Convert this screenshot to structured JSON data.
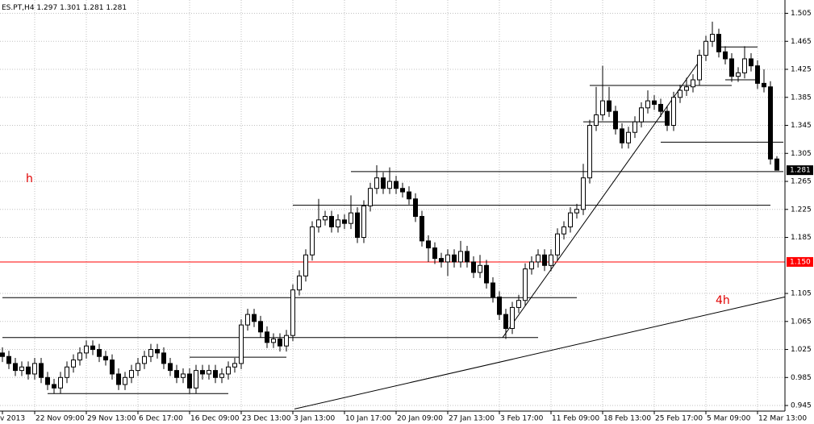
{
  "chart_data": {
    "type": "candlestick",
    "symbol": "ES.PT,H4",
    "header_ohlc": [
      1.297,
      1.301,
      1.281,
      1.281
    ],
    "categories": [
      "v 2013",
      null,
      null,
      null,
      null,
      "22 Nov 09:00",
      null,
      null,
      null,
      null,
      null,
      null,
      null,
      "29 Nov 13:00",
      null,
      null,
      null,
      null,
      null,
      null,
      null,
      "6 Dec 17:00",
      null,
      null,
      null,
      null,
      null,
      null,
      null,
      "16 Dec 09:00",
      null,
      null,
      null,
      null,
      null,
      null,
      null,
      "23 Dec 13:00",
      null,
      null,
      null,
      null,
      null,
      null,
      null,
      "3 Jan 13:00",
      null,
      null,
      null,
      null,
      null,
      null,
      null,
      "10 Jan 17:00",
      null,
      null,
      null,
      null,
      null,
      null,
      null,
      "20 Jan 09:00",
      null,
      null,
      null,
      null,
      null,
      null,
      null,
      "27 Jan 13:00",
      null,
      null,
      null,
      null,
      null,
      null,
      null,
      "3 Feb 17:00",
      null,
      null,
      null,
      null,
      null,
      null,
      null,
      "11 Feb 09:00",
      null,
      null,
      null,
      null,
      null,
      null,
      null,
      "18 Feb 13:00",
      null,
      null,
      null,
      null,
      null,
      null,
      null,
      "25 Feb 17:00",
      null,
      null,
      null,
      null,
      null,
      null,
      null,
      "5 Mar 09:00",
      null,
      null,
      null,
      null,
      null,
      null,
      null,
      "12 Mar 13:00",
      null,
      null,
      null
    ],
    "open": [
      1.02,
      1.015,
      1.005,
      0.995,
      1.0,
      0.99,
      1.005,
      0.985,
      0.975,
      0.97,
      0.985,
      1.0,
      1.01,
      1.02,
      1.03,
      1.025,
      1.015,
      1.01,
      0.99,
      0.975,
      0.985,
      0.995,
      1.005,
      1.015,
      1.025,
      1.02,
      1.005,
      0.995,
      0.985,
      0.99,
      0.97,
      0.995,
      0.99,
      0.995,
      0.985,
      0.99,
      1.0,
      1.005,
      1.06,
      1.075,
      1.065,
      1.05,
      1.035,
      1.04,
      1.03,
      1.045,
      1.11,
      1.13,
      1.16,
      1.2,
      1.21,
      1.215,
      1.2,
      1.21,
      1.205,
      1.22,
      1.185,
      1.23,
      1.255,
      1.27,
      1.255,
      1.265,
      1.255,
      1.25,
      1.24,
      1.215,
      1.18,
      1.17,
      1.155,
      1.15,
      1.16,
      1.15,
      1.165,
      1.15,
      1.135,
      1.145,
      1.12,
      1.1,
      1.075,
      1.055,
      1.085,
      1.095,
      1.14,
      1.15,
      1.16,
      1.145,
      1.16,
      1.19,
      1.2,
      1.22,
      1.225,
      1.27,
      1.345,
      1.36,
      1.38,
      1.365,
      1.34,
      1.32,
      1.335,
      1.35,
      1.37,
      1.38,
      1.375,
      1.365,
      1.345,
      1.385,
      1.395,
      1.4,
      1.41,
      1.445,
      1.465,
      1.475,
      1.45,
      1.44,
      1.415,
      1.42,
      1.44,
      1.43,
      1.405,
      1.4,
      1.297
    ],
    "high": [
      1.028,
      1.023,
      1.013,
      1.008,
      1.008,
      1.013,
      1.013,
      0.993,
      0.983,
      0.993,
      1.008,
      1.018,
      1.028,
      1.038,
      1.038,
      1.033,
      1.023,
      1.018,
      0.998,
      0.993,
      1.003,
      1.013,
      1.023,
      1.033,
      1.033,
      1.028,
      1.013,
      1.003,
      0.998,
      0.998,
      1.003,
      1.003,
      1.003,
      1.003,
      0.998,
      1.008,
      1.013,
      1.068,
      1.083,
      1.083,
      1.073,
      1.058,
      1.048,
      1.048,
      1.053,
      1.118,
      1.138,
      1.168,
      1.208,
      1.24,
      1.223,
      1.223,
      1.218,
      1.218,
      1.245,
      1.228,
      1.238,
      1.263,
      1.288,
      1.278,
      1.285,
      1.273,
      1.263,
      1.258,
      1.248,
      1.223,
      1.188,
      1.178,
      1.163,
      1.168,
      1.168,
      1.18,
      1.173,
      1.158,
      1.16,
      1.153,
      1.128,
      1.108,
      1.083,
      1.093,
      1.103,
      1.148,
      1.158,
      1.168,
      1.168,
      1.168,
      1.198,
      1.208,
      1.228,
      1.233,
      1.29,
      1.353,
      1.4,
      1.43,
      1.4,
      1.373,
      1.348,
      1.343,
      1.358,
      1.378,
      1.395,
      1.388,
      1.383,
      1.373,
      1.393,
      1.403,
      1.413,
      1.418,
      1.453,
      1.473,
      1.493,
      1.483,
      1.458,
      1.448,
      1.428,
      1.458,
      1.448,
      1.438,
      1.425,
      1.408,
      1.301
    ],
    "low": [
      1.007,
      0.997,
      0.987,
      0.987,
      0.982,
      0.982,
      0.977,
      0.967,
      0.962,
      0.962,
      0.977,
      0.992,
      1.002,
      1.012,
      1.017,
      1.007,
      1.002,
      0.982,
      0.967,
      0.967,
      0.977,
      0.987,
      0.997,
      1.007,
      1.012,
      0.997,
      0.987,
      0.977,
      0.977,
      0.962,
      0.962,
      0.982,
      0.982,
      0.977,
      0.977,
      0.982,
      0.992,
      0.997,
      1.052,
      1.057,
      1.042,
      1.027,
      1.027,
      1.022,
      1.022,
      1.037,
      1.102,
      1.122,
      1.152,
      1.192,
      1.202,
      1.192,
      1.192,
      1.197,
      1.197,
      1.177,
      1.177,
      1.222,
      1.247,
      1.247,
      1.247,
      1.247,
      1.242,
      1.232,
      1.207,
      1.172,
      1.15,
      1.147,
      1.142,
      1.13,
      1.142,
      1.142,
      1.142,
      1.127,
      1.127,
      1.112,
      1.092,
      1.067,
      1.04,
      1.047,
      1.077,
      1.087,
      1.132,
      1.142,
      1.137,
      1.137,
      1.152,
      1.182,
      1.192,
      1.212,
      1.217,
      1.262,
      1.337,
      1.352,
      1.357,
      1.332,
      1.312,
      1.312,
      1.327,
      1.342,
      1.362,
      1.367,
      1.357,
      1.337,
      1.337,
      1.377,
      1.387,
      1.392,
      1.402,
      1.437,
      1.457,
      1.442,
      1.432,
      1.407,
      1.407,
      1.412,
      1.422,
      1.397,
      1.392,
      1.289,
      1.281
    ],
    "close": [
      1.015,
      1.005,
      0.995,
      1.0,
      0.99,
      1.005,
      0.985,
      0.975,
      0.97,
      0.985,
      1.0,
      1.01,
      1.02,
      1.03,
      1.025,
      1.015,
      1.01,
      0.99,
      0.975,
      0.985,
      0.995,
      1.005,
      1.015,
      1.025,
      1.02,
      1.005,
      0.995,
      0.985,
      0.99,
      0.97,
      0.995,
      0.99,
      0.995,
      0.985,
      0.99,
      1.0,
      1.005,
      1.06,
      1.075,
      1.065,
      1.05,
      1.035,
      1.04,
      1.03,
      1.045,
      1.11,
      1.13,
      1.16,
      1.2,
      1.21,
      1.215,
      1.2,
      1.21,
      1.205,
      1.22,
      1.185,
      1.23,
      1.255,
      1.27,
      1.255,
      1.265,
      1.255,
      1.25,
      1.24,
      1.215,
      1.18,
      1.17,
      1.155,
      1.15,
      1.16,
      1.15,
      1.165,
      1.15,
      1.135,
      1.145,
      1.12,
      1.1,
      1.075,
      1.055,
      1.085,
      1.095,
      1.14,
      1.15,
      1.16,
      1.145,
      1.16,
      1.19,
      1.2,
      1.22,
      1.225,
      1.27,
      1.345,
      1.36,
      1.38,
      1.365,
      1.34,
      1.32,
      1.335,
      1.35,
      1.37,
      1.38,
      1.375,
      1.365,
      1.345,
      1.385,
      1.395,
      1.4,
      1.41,
      1.445,
      1.465,
      1.475,
      1.45,
      1.44,
      1.415,
      1.42,
      1.44,
      1.43,
      1.405,
      1.4,
      1.297,
      1.281
    ],
    "ylim": [
      0.937,
      1.524
    ],
    "yticks": [
      1.505,
      1.465,
      1.425,
      1.385,
      1.345,
      1.305,
      1.265,
      1.225,
      1.185,
      1.105,
      1.065,
      1.025,
      0.985,
      0.945
    ],
    "grid": true,
    "color": "#000000",
    "levels": [
      {
        "value": 0.962,
        "x": [
          7,
          35
        ]
      },
      {
        "value": 1.014,
        "x": [
          29,
          44
        ]
      },
      {
        "value": 1.042,
        "x": [
          0,
          83
        ]
      },
      {
        "value": 1.099,
        "x": [
          0,
          89
        ]
      },
      {
        "value": 1.231,
        "x": [
          45,
          119
        ]
      },
      {
        "value": 1.279,
        "x": [
          54,
          121
        ]
      },
      {
        "value": 1.321,
        "x": [
          102,
          121
        ]
      },
      {
        "value": 1.35,
        "x": [
          90,
          103
        ]
      },
      {
        "value": 1.402,
        "x": [
          91,
          113
        ]
      },
      {
        "value": 1.41,
        "x": [
          112,
          117
        ]
      },
      {
        "value": 1.457,
        "x": [
          111,
          117
        ]
      }
    ],
    "price_line": {
      "value": 1.15,
      "label": "1.150",
      "color": "#ff0000"
    },
    "bid": 1.281,
    "trendlines": [
      {
        "x": [
          77.5,
          108.4
        ],
        "y": [
          1.042,
          1.442
        ]
      },
      {
        "x": [
          45.25,
          121.25
        ],
        "y": [
          0.94,
          1.1
        ]
      }
    ],
    "annotations": [
      "h",
      "4h"
    ]
  }
}
